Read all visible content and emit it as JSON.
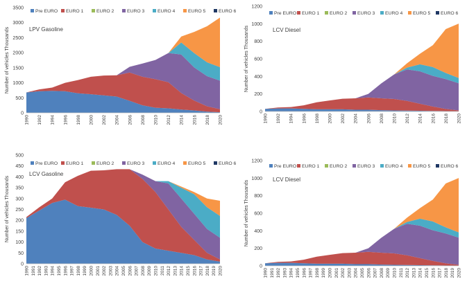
{
  "legend_labels": [
    "Pre EURO",
    "EURO 1",
    "EURO 2",
    "EURO 3",
    "EURO 4",
    "EURO 5",
    "EURO 6"
  ],
  "series_colors": [
    "#4f81bd",
    "#c0504d",
    "#9bbb59",
    "#8064a2",
    "#4bacc6",
    "#f79646",
    "#1f3864"
  ],
  "chart_data": [
    {
      "type": "area",
      "stacked": true,
      "title": "LPV Gasoline",
      "ylabel": "Number of vehicles  Thousands",
      "xlabel": "",
      "x": [
        1990,
        1992,
        1994,
        1996,
        1998,
        2000,
        2002,
        2004,
        2006,
        2008,
        2010,
        2012,
        2014,
        2016,
        2018,
        2020
      ],
      "x_ticks": [
        "1990",
        "1992",
        "1994",
        "1996",
        "1998",
        "2000",
        "2002",
        "2004",
        "2006",
        "2008",
        "2010",
        "2012",
        "2014",
        "2016",
        "2018",
        "2020"
      ],
      "ylim": [
        0,
        3500
      ],
      "y_ticks": [
        "0",
        "500",
        "1000",
        "1500",
        "2000",
        "2500",
        "3000",
        "3500"
      ],
      "series": [
        {
          "name": "Pre EURO",
          "values": [
            680,
            720,
            730,
            720,
            650,
            620,
            580,
            540,
            400,
            250,
            170,
            150,
            110,
            80,
            40,
            20
          ]
        },
        {
          "name": "EURO 1",
          "values": [
            0,
            60,
            110,
            280,
            440,
            580,
            660,
            710,
            940,
            950,
            950,
            870,
            550,
            330,
            180,
            100
          ]
        },
        {
          "name": "EURO 2",
          "values": [
            0,
            0,
            0,
            0,
            0,
            0,
            0,
            0,
            0,
            0,
            0,
            0,
            0,
            0,
            0,
            0
          ]
        },
        {
          "name": "EURO 3",
          "values": [
            0,
            0,
            0,
            0,
            0,
            0,
            0,
            0,
            190,
            440,
            640,
            970,
            1280,
            1100,
            1000,
            950
          ]
        },
        {
          "name": "EURO 4",
          "values": [
            0,
            0,
            0,
            0,
            0,
            0,
            0,
            0,
            0,
            0,
            0,
            0,
            400,
            480,
            460,
            450
          ]
        },
        {
          "name": "EURO 5",
          "values": [
            0,
            0,
            0,
            0,
            0,
            0,
            0,
            0,
            0,
            0,
            0,
            0,
            200,
            700,
            1200,
            1650
          ]
        },
        {
          "name": "EURO 6",
          "values": [
            0,
            0,
            0,
            0,
            0,
            0,
            0,
            0,
            0,
            0,
            0,
            0,
            0,
            0,
            0,
            0
          ]
        }
      ]
    },
    {
      "type": "area",
      "stacked": true,
      "title": "LCV Diesel",
      "ylabel": "Number of vehicles  Thousands",
      "xlabel": "",
      "x": [
        1990,
        1992,
        1994,
        1996,
        1998,
        2000,
        2002,
        2004,
        2006,
        2008,
        2010,
        2012,
        2014,
        2016,
        2018,
        2020
      ],
      "x_ticks": [
        "1990",
        "1992",
        "1994",
        "1996",
        "1998",
        "2000",
        "2002",
        "2004",
        "2006",
        "2008",
        "2010",
        "2012",
        "2014",
        "2016",
        "2018",
        "2020"
      ],
      "ylim": [
        0,
        1200
      ],
      "y_ticks": [
        "0",
        "200",
        "400",
        "600",
        "800",
        "1000",
        "1200"
      ],
      "series": [
        {
          "name": "Pre EURO",
          "values": [
            30,
            35,
            35,
            30,
            25,
            25,
            25,
            20,
            20,
            15,
            12,
            10,
            8,
            6,
            4,
            2
          ]
        },
        {
          "name": "EURO 1",
          "values": [
            0,
            10,
            15,
            40,
            80,
            100,
            120,
            130,
            140,
            135,
            130,
            110,
            80,
            50,
            25,
            10
          ]
        },
        {
          "name": "EURO 2",
          "values": [
            0,
            0,
            0,
            0,
            0,
            0,
            0,
            0,
            0,
            0,
            0,
            0,
            0,
            0,
            0,
            0
          ]
        },
        {
          "name": "EURO 3",
          "values": [
            0,
            0,
            0,
            0,
            0,
            0,
            0,
            0,
            40,
            170,
            280,
            360,
            370,
            350,
            340,
            310
          ]
        },
        {
          "name": "EURO 4",
          "values": [
            0,
            0,
            0,
            0,
            0,
            0,
            0,
            0,
            0,
            0,
            0,
            20,
            80,
            100,
            70,
            60
          ]
        },
        {
          "name": "EURO 5",
          "values": [
            0,
            0,
            0,
            0,
            0,
            0,
            0,
            0,
            0,
            0,
            0,
            50,
            120,
            250,
            500,
            620
          ]
        },
        {
          "name": "EURO 6",
          "values": [
            0,
            0,
            0,
            0,
            0,
            0,
            0,
            0,
            0,
            0,
            0,
            0,
            0,
            0,
            0,
            0
          ]
        }
      ]
    },
    {
      "type": "area",
      "stacked": true,
      "title": "LCV Gasoline",
      "ylabel": "Number of vehicles Thousands",
      "xlabel": "",
      "x": [
        1990,
        1992,
        1994,
        1996,
        1998,
        2000,
        2002,
        2004,
        2006,
        2008,
        2010,
        2012,
        2014,
        2016,
        2018,
        2020
      ],
      "x_ticks": [
        "1990",
        "1991",
        "1992",
        "1993",
        "1994",
        "1995",
        "1996",
        "1997",
        "1998",
        "1999",
        "2000",
        "2001",
        "2002",
        "2003",
        "2004",
        "2005",
        "2006",
        "2007",
        "2008",
        "2009",
        "2010",
        "2011",
        "2012",
        "2013",
        "2014",
        "2015",
        "2016",
        "2017",
        "2018",
        "2019",
        "2020"
      ],
      "ylim": [
        0,
        500
      ],
      "y_ticks": [
        "0",
        "50",
        "100",
        "150",
        "200",
        "250",
        "300",
        "350",
        "400",
        "450",
        "500"
      ],
      "series": [
        {
          "name": "Pre EURO",
          "values": [
            210,
            245,
            280,
            295,
            265,
            258,
            250,
            225,
            175,
            100,
            70,
            60,
            50,
            40,
            20,
            10
          ]
        },
        {
          "name": "EURO 1",
          "values": [
            5,
            15,
            20,
            80,
            140,
            170,
            180,
            210,
            260,
            290,
            260,
            190,
            120,
            70,
            30,
            10
          ]
        },
        {
          "name": "EURO 2",
          "values": [
            0,
            0,
            0,
            0,
            0,
            0,
            0,
            0,
            0,
            0,
            0,
            0,
            0,
            0,
            0,
            0
          ]
        },
        {
          "name": "EURO 3",
          "values": [
            0,
            0,
            0,
            0,
            0,
            0,
            0,
            0,
            0,
            20,
            50,
            120,
            130,
            120,
            110,
            100
          ]
        },
        {
          "name": "EURO 4",
          "values": [
            0,
            0,
            0,
            0,
            0,
            0,
            0,
            0,
            0,
            0,
            0,
            10,
            50,
            90,
            100,
            100
          ]
        },
        {
          "name": "EURO 5",
          "values": [
            0,
            0,
            0,
            0,
            0,
            0,
            0,
            0,
            0,
            0,
            0,
            0,
            5,
            10,
            40,
            70
          ]
        },
        {
          "name": "EURO 6",
          "values": [
            0,
            0,
            0,
            0,
            0,
            0,
            0,
            0,
            0,
            0,
            0,
            0,
            0,
            0,
            0,
            0
          ]
        }
      ]
    },
    {
      "type": "area",
      "stacked": true,
      "title": "LCV Diesel",
      "ylabel": "Number of vehicles  Thousands",
      "xlabel": "",
      "x": [
        1990,
        1992,
        1994,
        1996,
        1998,
        2000,
        2002,
        2004,
        2006,
        2008,
        2010,
        2012,
        2014,
        2016,
        2018,
        2020
      ],
      "x_ticks": [
        "1990",
        "1991",
        "1992",
        "1993",
        "1994",
        "1995",
        "1996",
        "1997",
        "1998",
        "1999",
        "2000",
        "2001",
        "2002",
        "2003",
        "2004",
        "2005",
        "2006",
        "2007",
        "2008",
        "2009",
        "2010",
        "2011",
        "2012",
        "2013",
        "2014",
        "2015",
        "2016",
        "2017",
        "2018",
        "2019",
        "2020"
      ],
      "ylim": [
        0,
        1200
      ],
      "y_ticks": [
        "0",
        "200",
        "400",
        "600",
        "800",
        "1000",
        "1200"
      ],
      "series": [
        {
          "name": "Pre EURO",
          "values": [
            30,
            35,
            35,
            30,
            25,
            25,
            25,
            20,
            20,
            15,
            12,
            10,
            8,
            6,
            4,
            2
          ]
        },
        {
          "name": "EURO 1",
          "values": [
            0,
            10,
            15,
            40,
            80,
            100,
            120,
            130,
            140,
            135,
            130,
            110,
            80,
            50,
            25,
            10
          ]
        },
        {
          "name": "EURO 2",
          "values": [
            0,
            0,
            0,
            0,
            0,
            0,
            0,
            0,
            0,
            0,
            0,
            0,
            0,
            0,
            0,
            0
          ]
        },
        {
          "name": "EURO 3",
          "values": [
            0,
            0,
            0,
            0,
            0,
            0,
            0,
            0,
            40,
            170,
            280,
            360,
            370,
            350,
            340,
            310
          ]
        },
        {
          "name": "EURO 4",
          "values": [
            0,
            0,
            0,
            0,
            0,
            0,
            0,
            0,
            0,
            0,
            0,
            20,
            80,
            100,
            70,
            60
          ]
        },
        {
          "name": "EURO 5",
          "values": [
            0,
            0,
            0,
            0,
            0,
            0,
            0,
            0,
            0,
            0,
            0,
            50,
            120,
            250,
            500,
            620
          ]
        },
        {
          "name": "EURO 6",
          "values": [
            0,
            0,
            0,
            0,
            0,
            0,
            0,
            0,
            0,
            0,
            0,
            0,
            0,
            0,
            0,
            0
          ]
        }
      ]
    }
  ]
}
